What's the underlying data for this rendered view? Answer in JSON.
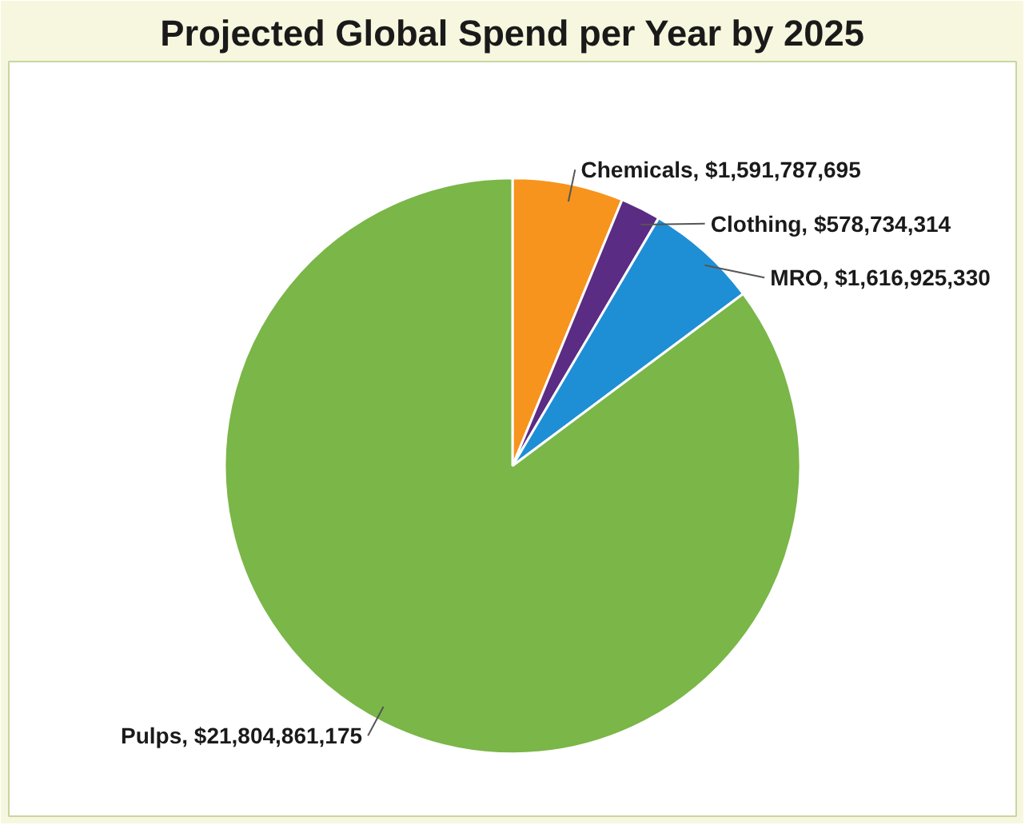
{
  "chart_data": {
    "type": "pie",
    "title": "Projected Global Spend per Year by 2025",
    "categories": [
      "Chemicals",
      "Clothing",
      "MRO",
      "Pulps"
    ],
    "values": [
      1591787695,
      578734314,
      1616925330,
      21804861175
    ],
    "colors": [
      "#f7941d",
      "#5b2c83",
      "#1e8fd5",
      "#7ab648"
    ],
    "value_labels": [
      "$1,591,787,695",
      "$578,734,314",
      "$1,616,925,330",
      "$21,804,861,175"
    ]
  }
}
